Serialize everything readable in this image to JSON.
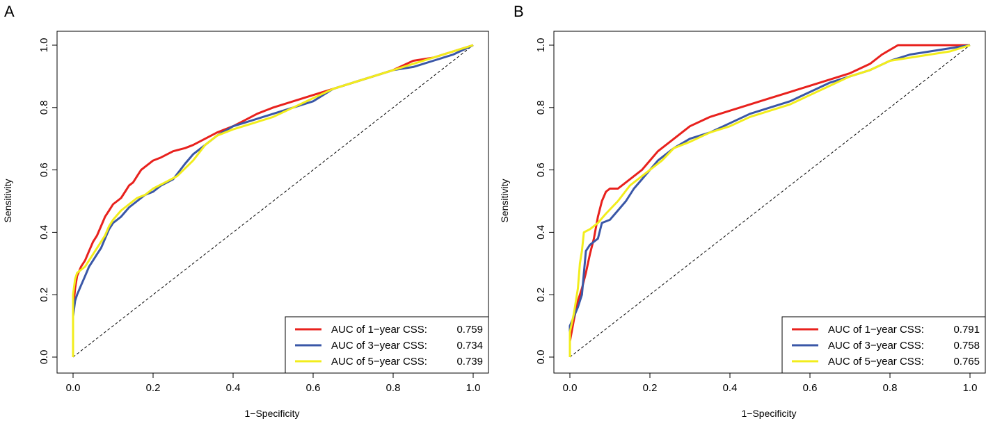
{
  "chart_data": [
    {
      "type": "line",
      "panel_label": "A",
      "xlabel": "1−Specificity",
      "ylabel": "Sensitivity",
      "xlim": [
        0,
        1
      ],
      "ylim": [
        0,
        1
      ],
      "ticks": [
        "0.0",
        "0.2",
        "0.4",
        "0.6",
        "0.8",
        "1.0"
      ],
      "legend_position": "bottom-right",
      "series": [
        {
          "name": "AUC of 1−year CSS:",
          "auc": "0.759",
          "color": "#e8211d",
          "points": [
            [
              0,
              0
            ],
            [
              0,
              0.15
            ],
            [
              0.005,
              0.22
            ],
            [
              0.01,
              0.26
            ],
            [
              0.02,
              0.29
            ],
            [
              0.03,
              0.31
            ],
            [
              0.04,
              0.34
            ],
            [
              0.05,
              0.37
            ],
            [
              0.06,
              0.39
            ],
            [
              0.07,
              0.42
            ],
            [
              0.08,
              0.45
            ],
            [
              0.09,
              0.47
            ],
            [
              0.1,
              0.49
            ],
            [
              0.11,
              0.5
            ],
            [
              0.12,
              0.51
            ],
            [
              0.13,
              0.53
            ],
            [
              0.14,
              0.55
            ],
            [
              0.15,
              0.56
            ],
            [
              0.16,
              0.58
            ],
            [
              0.17,
              0.6
            ],
            [
              0.18,
              0.61
            ],
            [
              0.19,
              0.62
            ],
            [
              0.2,
              0.63
            ],
            [
              0.22,
              0.64
            ],
            [
              0.25,
              0.66
            ],
            [
              0.28,
              0.67
            ],
            [
              0.3,
              0.68
            ],
            [
              0.33,
              0.7
            ],
            [
              0.36,
              0.72
            ],
            [
              0.4,
              0.74
            ],
            [
              0.43,
              0.76
            ],
            [
              0.46,
              0.78
            ],
            [
              0.5,
              0.8
            ],
            [
              0.55,
              0.82
            ],
            [
              0.6,
              0.84
            ],
            [
              0.65,
              0.86
            ],
            [
              0.7,
              0.88
            ],
            [
              0.75,
              0.9
            ],
            [
              0.8,
              0.92
            ],
            [
              0.85,
              0.95
            ],
            [
              0.9,
              0.96
            ],
            [
              0.95,
              0.98
            ],
            [
              1,
              1
            ]
          ]
        },
        {
          "name": "AUC of 3−year CSS:",
          "auc": "0.734",
          "color": "#3a57a7",
          "points": [
            [
              0,
              0
            ],
            [
              0,
              0.13
            ],
            [
              0.005,
              0.18
            ],
            [
              0.01,
              0.2
            ],
            [
              0.02,
              0.23
            ],
            [
              0.03,
              0.26
            ],
            [
              0.04,
              0.29
            ],
            [
              0.05,
              0.31
            ],
            [
              0.06,
              0.33
            ],
            [
              0.07,
              0.35
            ],
            [
              0.08,
              0.38
            ],
            [
              0.09,
              0.41
            ],
            [
              0.1,
              0.43
            ],
            [
              0.12,
              0.45
            ],
            [
              0.14,
              0.48
            ],
            [
              0.16,
              0.5
            ],
            [
              0.18,
              0.52
            ],
            [
              0.2,
              0.53
            ],
            [
              0.22,
              0.55
            ],
            [
              0.25,
              0.57
            ],
            [
              0.28,
              0.62
            ],
            [
              0.3,
              0.65
            ],
            [
              0.33,
              0.68
            ],
            [
              0.36,
              0.71
            ],
            [
              0.4,
              0.74
            ],
            [
              0.45,
              0.76
            ],
            [
              0.5,
              0.78
            ],
            [
              0.55,
              0.8
            ],
            [
              0.6,
              0.82
            ],
            [
              0.65,
              0.86
            ],
            [
              0.7,
              0.88
            ],
            [
              0.75,
              0.9
            ],
            [
              0.8,
              0.92
            ],
            [
              0.85,
              0.93
            ],
            [
              0.9,
              0.95
            ],
            [
              0.95,
              0.97
            ],
            [
              1,
              1
            ]
          ]
        },
        {
          "name": "AUC of 5−year CSS:",
          "auc": "0.739",
          "color": "#f2ed1c",
          "points": [
            [
              0,
              0
            ],
            [
              0,
              0.2
            ],
            [
              0.005,
              0.25
            ],
            [
              0.01,
              0.27
            ],
            [
              0.02,
              0.28
            ],
            [
              0.03,
              0.29
            ],
            [
              0.04,
              0.31
            ],
            [
              0.05,
              0.33
            ],
            [
              0.06,
              0.35
            ],
            [
              0.07,
              0.37
            ],
            [
              0.08,
              0.39
            ],
            [
              0.09,
              0.42
            ],
            [
              0.1,
              0.44
            ],
            [
              0.12,
              0.47
            ],
            [
              0.14,
              0.49
            ],
            [
              0.16,
              0.51
            ],
            [
              0.18,
              0.52
            ],
            [
              0.2,
              0.54
            ],
            [
              0.23,
              0.56
            ],
            [
              0.26,
              0.58
            ],
            [
              0.3,
              0.63
            ],
            [
              0.33,
              0.68
            ],
            [
              0.36,
              0.71
            ],
            [
              0.4,
              0.73
            ],
            [
              0.45,
              0.75
            ],
            [
              0.5,
              0.77
            ],
            [
              0.55,
              0.8
            ],
            [
              0.6,
              0.83
            ],
            [
              0.65,
              0.86
            ],
            [
              0.7,
              0.88
            ],
            [
              0.75,
              0.9
            ],
            [
              0.8,
              0.92
            ],
            [
              0.85,
              0.94
            ],
            [
              0.9,
              0.96
            ],
            [
              0.95,
              0.98
            ],
            [
              1,
              1
            ]
          ]
        }
      ]
    },
    {
      "type": "line",
      "panel_label": "B",
      "xlabel": "1−Specificity",
      "ylabel": "Sensitivity",
      "xlim": [
        0,
        1
      ],
      "ylim": [
        0,
        1
      ],
      "ticks": [
        "0.0",
        "0.2",
        "0.4",
        "0.6",
        "0.8",
        "1.0"
      ],
      "legend_position": "bottom-right",
      "series": [
        {
          "name": "AUC of 1−year CSS:",
          "auc": "0.791",
          "color": "#e8211d",
          "points": [
            [
              0,
              0
            ],
            [
              0,
              0.05
            ],
            [
              0.01,
              0.12
            ],
            [
              0.02,
              0.18
            ],
            [
              0.03,
              0.22
            ],
            [
              0.04,
              0.27
            ],
            [
              0.05,
              0.33
            ],
            [
              0.06,
              0.38
            ],
            [
              0.07,
              0.45
            ],
            [
              0.08,
              0.5
            ],
            [
              0.09,
              0.53
            ],
            [
              0.1,
              0.54
            ],
            [
              0.12,
              0.54
            ],
            [
              0.14,
              0.56
            ],
            [
              0.16,
              0.58
            ],
            [
              0.18,
              0.6
            ],
            [
              0.2,
              0.63
            ],
            [
              0.22,
              0.66
            ],
            [
              0.25,
              0.69
            ],
            [
              0.28,
              0.72
            ],
            [
              0.3,
              0.74
            ],
            [
              0.35,
              0.77
            ],
            [
              0.4,
              0.79
            ],
            [
              0.45,
              0.81
            ],
            [
              0.5,
              0.83
            ],
            [
              0.55,
              0.85
            ],
            [
              0.6,
              0.87
            ],
            [
              0.65,
              0.89
            ],
            [
              0.7,
              0.91
            ],
            [
              0.75,
              0.94
            ],
            [
              0.78,
              0.97
            ],
            [
              0.82,
              1
            ],
            [
              1,
              1
            ]
          ]
        },
        {
          "name": "AUC of 3−year CSS:",
          "auc": "0.758",
          "color": "#3a57a7",
          "points": [
            [
              0,
              0
            ],
            [
              0,
              0.1
            ],
            [
              0.01,
              0.13
            ],
            [
              0.02,
              0.16
            ],
            [
              0.03,
              0.2
            ],
            [
              0.04,
              0.34
            ],
            [
              0.05,
              0.36
            ],
            [
              0.06,
              0.37
            ],
            [
              0.07,
              0.38
            ],
            [
              0.08,
              0.43
            ],
            [
              0.1,
              0.44
            ],
            [
              0.12,
              0.47
            ],
            [
              0.14,
              0.5
            ],
            [
              0.16,
              0.54
            ],
            [
              0.18,
              0.57
            ],
            [
              0.2,
              0.6
            ],
            [
              0.22,
              0.63
            ],
            [
              0.24,
              0.65
            ],
            [
              0.26,
              0.67
            ],
            [
              0.3,
              0.7
            ],
            [
              0.35,
              0.72
            ],
            [
              0.4,
              0.75
            ],
            [
              0.45,
              0.78
            ],
            [
              0.5,
              0.8
            ],
            [
              0.55,
              0.82
            ],
            [
              0.6,
              0.85
            ],
            [
              0.65,
              0.88
            ],
            [
              0.7,
              0.9
            ],
            [
              0.75,
              0.92
            ],
            [
              0.8,
              0.95
            ],
            [
              0.85,
              0.97
            ],
            [
              0.9,
              0.98
            ],
            [
              0.95,
              0.99
            ],
            [
              1,
              1
            ]
          ]
        },
        {
          "name": "AUC of 5−year CSS:",
          "auc": "0.765",
          "color": "#f2ed1c",
          "points": [
            [
              0,
              0
            ],
            [
              0,
              0.08
            ],
            [
              0.01,
              0.14
            ],
            [
              0.02,
              0.22
            ],
            [
              0.025,
              0.3
            ],
            [
              0.03,
              0.34
            ],
            [
              0.035,
              0.4
            ],
            [
              0.05,
              0.41
            ],
            [
              0.07,
              0.43
            ],
            [
              0.09,
              0.46
            ],
            [
              0.12,
              0.5
            ],
            [
              0.15,
              0.55
            ],
            [
              0.18,
              0.58
            ],
            [
              0.2,
              0.6
            ],
            [
              0.23,
              0.63
            ],
            [
              0.26,
              0.67
            ],
            [
              0.3,
              0.69
            ],
            [
              0.35,
              0.72
            ],
            [
              0.4,
              0.74
            ],
            [
              0.45,
              0.77
            ],
            [
              0.5,
              0.79
            ],
            [
              0.55,
              0.81
            ],
            [
              0.6,
              0.84
            ],
            [
              0.65,
              0.87
            ],
            [
              0.7,
              0.9
            ],
            [
              0.75,
              0.92
            ],
            [
              0.8,
              0.95
            ],
            [
              0.85,
              0.96
            ],
            [
              0.9,
              0.97
            ],
            [
              0.95,
              0.98
            ],
            [
              1,
              1
            ]
          ]
        }
      ]
    }
  ]
}
